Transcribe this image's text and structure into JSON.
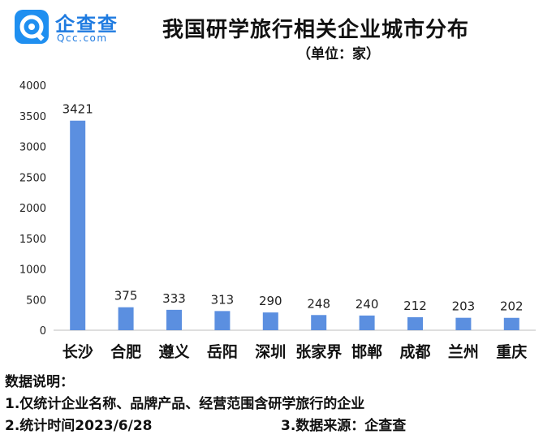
{
  "logo": {
    "name": "企查查",
    "sub": "Qcc.com"
  },
  "chart_data": {
    "type": "bar",
    "title": "我国研学旅行相关企业城市分布",
    "subtitle": "（单位：家）",
    "categories": [
      "长沙",
      "合肥",
      "遵义",
      "岳阳",
      "深圳",
      "张家界",
      "邯郸",
      "成都",
      "兰州",
      "重庆"
    ],
    "values": [
      3421,
      375,
      333,
      313,
      290,
      248,
      240,
      212,
      203,
      202
    ],
    "ylim": [
      0,
      4000
    ],
    "yticks": [
      0,
      500,
      1000,
      1500,
      2000,
      2500,
      3000,
      3500,
      4000
    ],
    "grid": false,
    "bar_color": "#5b8fe0"
  },
  "notes": {
    "heading": "数据说明：",
    "line1": "1.仅统计企业名称、品牌产品、经营范围含研学旅行的企业",
    "line2": "2.统计时间2023/6/28",
    "line3": "3.数据来源：企查查"
  }
}
